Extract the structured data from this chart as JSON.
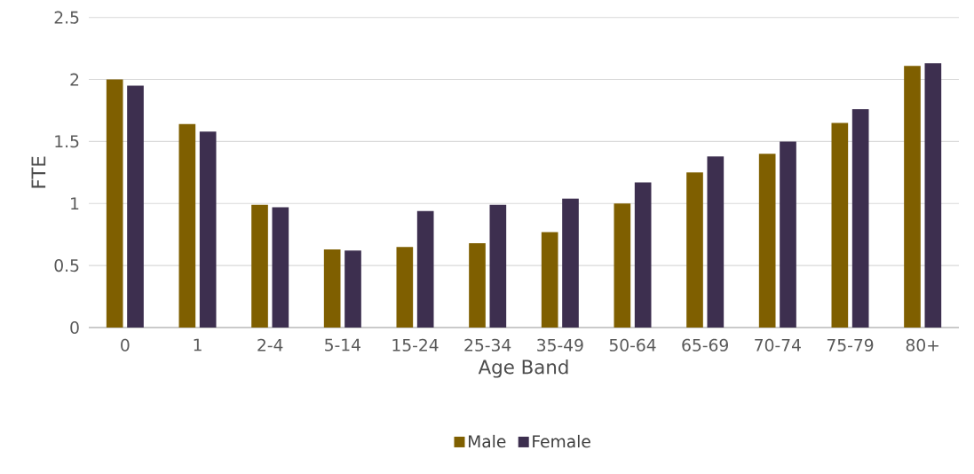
{
  "chart_data": {
    "type": "bar",
    "xlabel": "Age Band",
    "ylabel": "FTE",
    "categories": [
      "0",
      "1",
      "2-4",
      "5-14",
      "15-24",
      "25-34",
      "35-49",
      "50-64",
      "65-69",
      "70-74",
      "75-79",
      "80+"
    ],
    "series": [
      {
        "name": "Male",
        "color": "#7f5f00",
        "values": [
          2.0,
          1.64,
          0.99,
          0.63,
          0.65,
          0.68,
          0.77,
          1.0,
          1.25,
          1.4,
          1.65,
          2.11
        ]
      },
      {
        "name": "Female",
        "color": "#3d2f4f",
        "values": [
          1.95,
          1.58,
          0.97,
          0.62,
          0.94,
          0.99,
          1.04,
          1.17,
          1.38,
          1.5,
          1.76,
          2.13
        ]
      }
    ],
    "ylim": [
      0,
      2.5
    ],
    "yticks": [
      0,
      0.5,
      1,
      1.5,
      2,
      2.5
    ],
    "grid": "y",
    "legend": "bottom"
  }
}
